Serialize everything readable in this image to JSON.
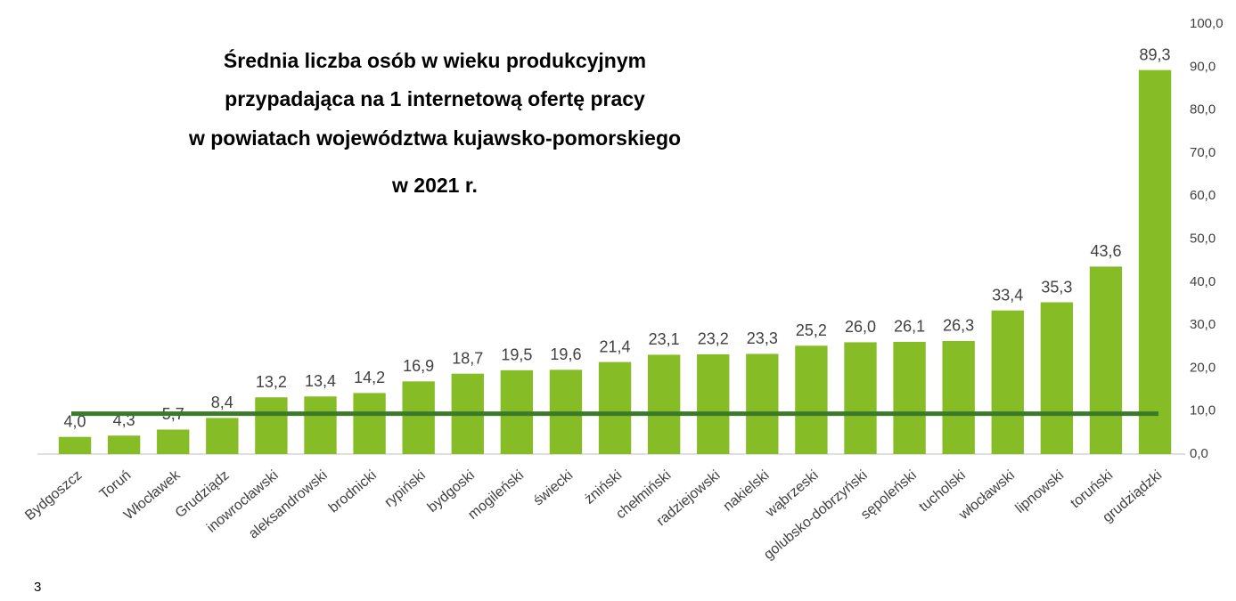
{
  "chart_data": {
    "type": "bar",
    "title": [
      "Średnia liczba osób w wieku produkcyjnym",
      "przypadająca na 1 internetową ofertę pracy",
      "w powiatach województwa kujawsko-pomorskiego",
      "w 2021 r."
    ],
    "categories": [
      "Bydgoszcz",
      "Toruń",
      "Włocławek",
      "Grudziądz",
      "inowrocławski",
      "aleksandrowski",
      "brodnicki",
      "rypiński",
      "bydgoski",
      "mogileński",
      "świecki",
      "żniński",
      "chełmiński",
      "radziejowski",
      "nakielski",
      "wąbrzeski",
      "golubsko-dobrzyński",
      "sępoleński",
      "tucholski",
      "włocławski",
      "lipnowski",
      "toruński",
      "grudziądzki"
    ],
    "values": [
      4.0,
      4.3,
      5.7,
      8.4,
      13.2,
      13.4,
      14.2,
      16.9,
      18.7,
      19.5,
      19.6,
      21.4,
      23.1,
      23.2,
      23.3,
      25.2,
      26.0,
      26.1,
      26.3,
      33.4,
      35.3,
      43.6,
      89.3
    ],
    "value_labels": [
      "4,0",
      "4,3",
      "5,7",
      "8,4",
      "13,2",
      "13,4",
      "14,2",
      "16,9",
      "18,7",
      "19,5",
      "19,6",
      "21,4",
      "23,1",
      "23,2",
      "23,3",
      "25,2",
      "26,0",
      "26,1",
      "26,3",
      "33,4",
      "35,3",
      "43,6",
      "89,3"
    ],
    "color": "#86bc25",
    "average_line": {
      "value": 9.4,
      "color": "#3b7a2a"
    },
    "ylim": [
      0,
      100
    ],
    "yticks": [
      {
        "value": 0,
        "label": "0,0"
      },
      {
        "value": 10,
        "label": "10,0"
      },
      {
        "value": 20,
        "label": "20,0"
      },
      {
        "value": 30,
        "label": "30,0"
      },
      {
        "value": 40,
        "label": "40,0"
      },
      {
        "value": 50,
        "label": "50,0"
      },
      {
        "value": 60,
        "label": "60,0"
      },
      {
        "value": 70,
        "label": "70,0"
      },
      {
        "value": 80,
        "label": "80,0"
      },
      {
        "value": 90,
        "label": "90,0"
      },
      {
        "value": 100,
        "label": "100,0"
      }
    ],
    "grid": false
  },
  "page_number": "3"
}
